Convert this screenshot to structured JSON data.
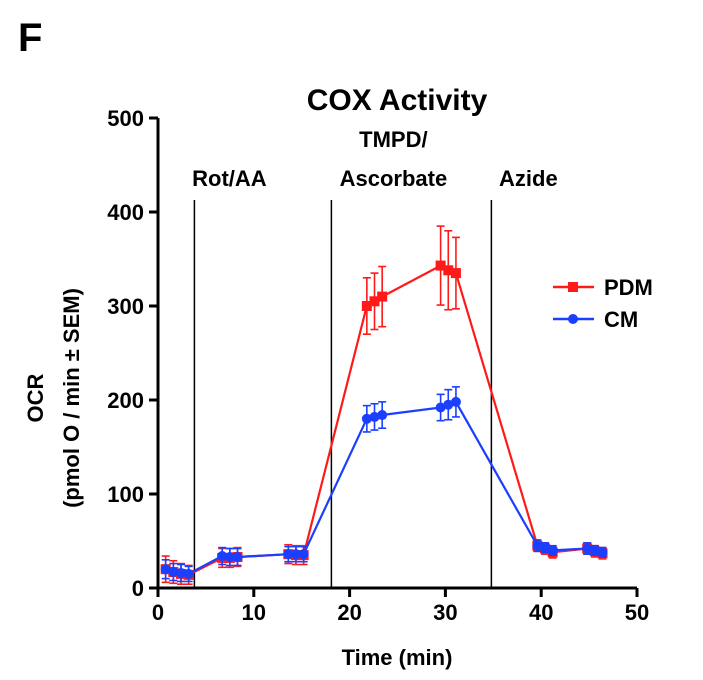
{
  "panel_label": "F",
  "chart_data": {
    "type": "line",
    "title": "COX Activity",
    "xlabel": "Time (min)",
    "ylabel": [
      "OCR",
      "(pmol O / min ± SEM)"
    ],
    "xlim": [
      0,
      50
    ],
    "ylim": [
      0,
      500
    ],
    "xticks": [
      0,
      10,
      20,
      30,
      40,
      50
    ],
    "yticks": [
      0,
      100,
      200,
      300,
      400,
      500
    ],
    "grid": false,
    "legend_position": "right",
    "injections": [
      {
        "x": 3.8,
        "label": [
          "Rot/AA"
        ]
      },
      {
        "x": 18.1,
        "label": [
          "TMPD/",
          "Ascorbate"
        ]
      },
      {
        "x": 34.8,
        "label": [
          "Azide"
        ]
      }
    ],
    "series": [
      {
        "name": "PDM",
        "color": "#ff1a1a",
        "marker": "square",
        "x": [
          0.8,
          1.6,
          2.4,
          3.2,
          6.7,
          7.5,
          8.3,
          13.6,
          14.4,
          15.2,
          21.8,
          22.6,
          23.4,
          29.5,
          30.3,
          31.1,
          39.6,
          40.4,
          41.2,
          44.8,
          45.6,
          46.4
        ],
        "y": [
          20,
          17,
          15,
          14,
          32,
          32,
          33,
          36,
          35,
          35,
          300,
          305,
          310,
          343,
          338,
          335,
          45,
          42,
          38,
          42,
          39,
          37
        ],
        "err": [
          14,
          12,
          11,
          10,
          10,
          10,
          10,
          10,
          10,
          10,
          30,
          30,
          32,
          42,
          42,
          38,
          6,
          6,
          6,
          6,
          6,
          6
        ]
      },
      {
        "name": "CM",
        "color": "#1a3fff",
        "marker": "circle",
        "x": [
          0.8,
          1.6,
          2.4,
          3.2,
          6.7,
          7.5,
          8.3,
          13.6,
          14.4,
          15.2,
          21.8,
          22.6,
          23.4,
          29.5,
          30.3,
          31.1,
          39.6,
          40.4,
          41.2,
          44.8,
          45.6,
          46.4
        ],
        "y": [
          20,
          17,
          16,
          15,
          34,
          33,
          33,
          36,
          36,
          36,
          180,
          182,
          184,
          192,
          195,
          198,
          45,
          43,
          40,
          42,
          40,
          38
        ],
        "err": [
          10,
          9,
          9,
          8,
          9,
          9,
          9,
          8,
          8,
          8,
          14,
          14,
          14,
          14,
          16,
          16,
          6,
          5,
          5,
          6,
          5,
          5
        ]
      }
    ]
  }
}
